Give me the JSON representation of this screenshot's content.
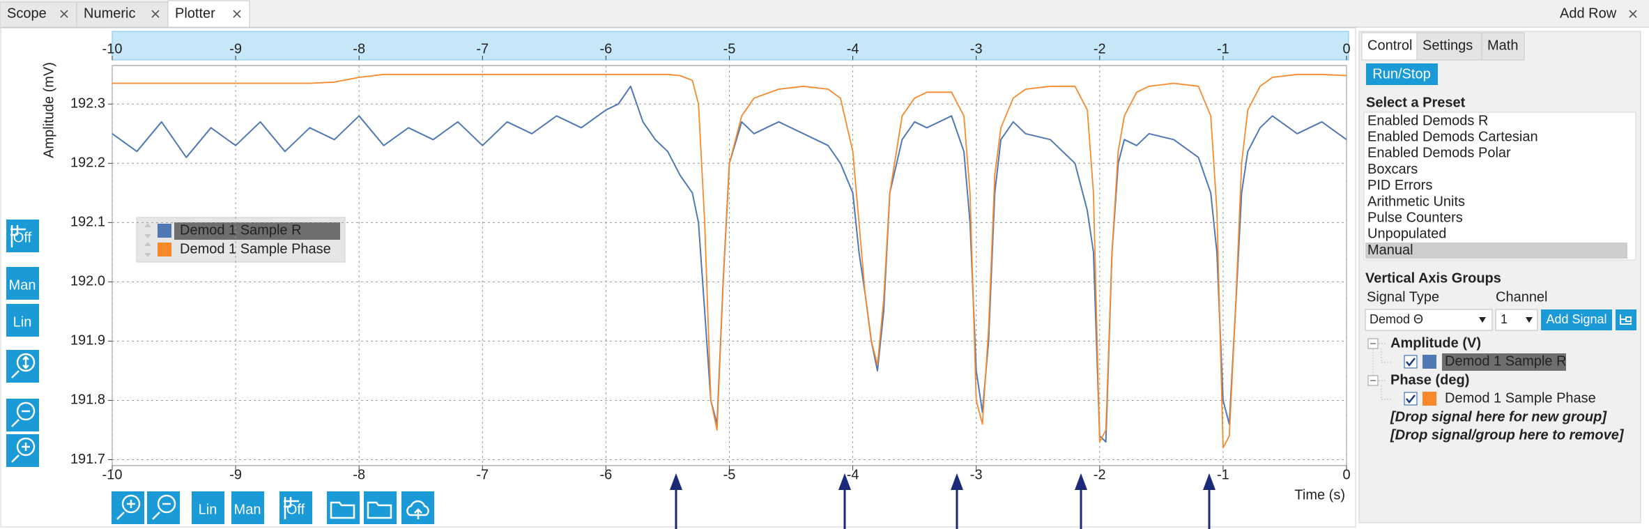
{
  "tabs": [
    "Scope",
    "Numeric",
    "Plotter"
  ],
  "add_row": "Add Row",
  "chart_data": {
    "type": "line",
    "x_label": "Time (s)",
    "y_label": "Amplitude (mV)",
    "x": [
      -10,
      -9.8,
      -9.6,
      -9.4,
      -9.2,
      -9.0,
      -8.8,
      -8.6,
      -8.4,
      -8.2,
      -8.0,
      -7.8,
      -7.6,
      -7.4,
      -7.2,
      -7.0,
      -6.8,
      -6.6,
      -6.4,
      -6.2,
      -6.0,
      -5.9,
      -5.8,
      -5.7,
      -5.6,
      -5.5,
      -5.4,
      -5.3,
      -5.25,
      -5.2,
      -5.15,
      -5.1,
      -5.05,
      -5.0,
      -4.9,
      -4.8,
      -4.6,
      -4.4,
      -4.2,
      -4.1,
      -4.0,
      -3.95,
      -3.9,
      -3.85,
      -3.8,
      -3.75,
      -3.7,
      -3.6,
      -3.5,
      -3.4,
      -3.2,
      -3.1,
      -3.05,
      -3.0,
      -2.95,
      -2.9,
      -2.85,
      -2.8,
      -2.7,
      -2.6,
      -2.4,
      -2.2,
      -2.1,
      -2.05,
      -2.0,
      -1.95,
      -1.9,
      -1.85,
      -1.8,
      -1.7,
      -1.6,
      -1.4,
      -1.2,
      -1.1,
      -1.05,
      -1.0,
      -0.95,
      -0.9,
      -0.85,
      -0.8,
      -0.7,
      -0.6,
      -0.4,
      -0.2,
      0
    ],
    "series": [
      {
        "name": "Demod 1 Sample R",
        "color": "#4f78b4",
        "values": [
          192.25,
          192.22,
          192.27,
          192.21,
          192.26,
          192.23,
          192.27,
          192.22,
          192.26,
          192.24,
          192.28,
          192.23,
          192.26,
          192.24,
          192.27,
          192.23,
          192.27,
          192.25,
          192.28,
          192.26,
          192.29,
          192.3,
          192.33,
          192.27,
          192.24,
          192.22,
          192.18,
          192.15,
          192.1,
          191.95,
          191.8,
          191.76,
          192.0,
          192.2,
          192.27,
          192.25,
          192.27,
          192.25,
          192.23,
          192.2,
          192.15,
          192.05,
          191.98,
          191.9,
          191.85,
          191.95,
          192.15,
          192.24,
          192.27,
          192.26,
          192.28,
          192.22,
          192.1,
          191.85,
          191.78,
          191.9,
          192.15,
          192.24,
          192.27,
          192.25,
          192.24,
          192.2,
          192.12,
          192.05,
          191.74,
          191.73,
          192.05,
          192.2,
          192.24,
          192.23,
          192.25,
          192.24,
          192.21,
          192.15,
          192.05,
          191.8,
          191.76,
          191.95,
          192.15,
          192.22,
          192.26,
          192.28,
          192.25,
          192.27,
          192.24
        ]
      },
      {
        "name": "Demod 1 Sample Phase",
        "color": "#f7892a",
        "values": [
          192.335,
          192.335,
          192.335,
          192.335,
          192.335,
          192.335,
          192.335,
          192.335,
          192.335,
          192.337,
          192.345,
          192.35,
          192.35,
          192.35,
          192.35,
          192.35,
          192.35,
          192.35,
          192.35,
          192.35,
          192.35,
          192.35,
          192.35,
          192.35,
          192.35,
          192.35,
          192.348,
          192.34,
          192.3,
          192.1,
          191.8,
          191.75,
          192.0,
          192.2,
          192.28,
          192.31,
          192.325,
          192.33,
          192.325,
          192.31,
          192.22,
          192.1,
          191.98,
          191.9,
          191.86,
          191.97,
          192.15,
          192.28,
          192.31,
          192.32,
          192.32,
          192.28,
          192.15,
          191.8,
          191.76,
          191.92,
          192.18,
          192.26,
          192.31,
          192.325,
          192.33,
          192.33,
          192.29,
          192.15,
          191.73,
          191.75,
          192.05,
          192.22,
          192.28,
          192.32,
          192.33,
          192.335,
          192.33,
          192.28,
          192.12,
          191.72,
          191.74,
          191.95,
          192.2,
          192.29,
          192.33,
          192.345,
          192.35,
          192.35,
          192.348
        ]
      }
    ],
    "xlim": [
      -10,
      0
    ],
    "xticks": [
      -10,
      -9,
      -8,
      -7,
      -6,
      -5,
      -4,
      -3,
      -2,
      -1,
      0
    ],
    "ylim": [
      191.69,
      192.365
    ],
    "yticks": [
      191.7,
      191.8,
      191.9,
      {
        "value": 192,
        "label": "192.0"
      },
      192.1,
      192.2,
      192.3
    ],
    "grid": true
  },
  "left_toolbar": [
    "Off",
    "Man",
    "Lin"
  ],
  "bottom_toolbar": [
    "Lin",
    "Man",
    "Off"
  ],
  "side_panel": {
    "tabs": [
      "Control",
      "Settings",
      "Math"
    ],
    "run_stop": "Run/Stop",
    "preset_heading": "Select a Preset",
    "presets": [
      "Enabled Demods R",
      "Enabled Demods Cartesian",
      "Enabled Demods Polar",
      "Boxcars",
      "PID Errors",
      "Arithmetic Units",
      "Pulse Counters",
      "Unpopulated",
      "Manual"
    ],
    "axis_groups_heading": "Vertical Axis Groups",
    "signal_type_label": "Signal Type",
    "channel_label": "Channel",
    "signal_type": "Demod Θ",
    "channel": "1",
    "add_signal": "Add Signal",
    "groups": [
      {
        "name": "Amplitude (V)",
        "signals": [
          "Demod 1 Sample R"
        ]
      },
      {
        "name": "Phase (deg)",
        "signals": [
          "Demod 1 Sample Phase"
        ]
      }
    ],
    "drop_new": "[Drop signal here for new group]",
    "drop_remove": "[Drop signal/group here to remove]"
  }
}
